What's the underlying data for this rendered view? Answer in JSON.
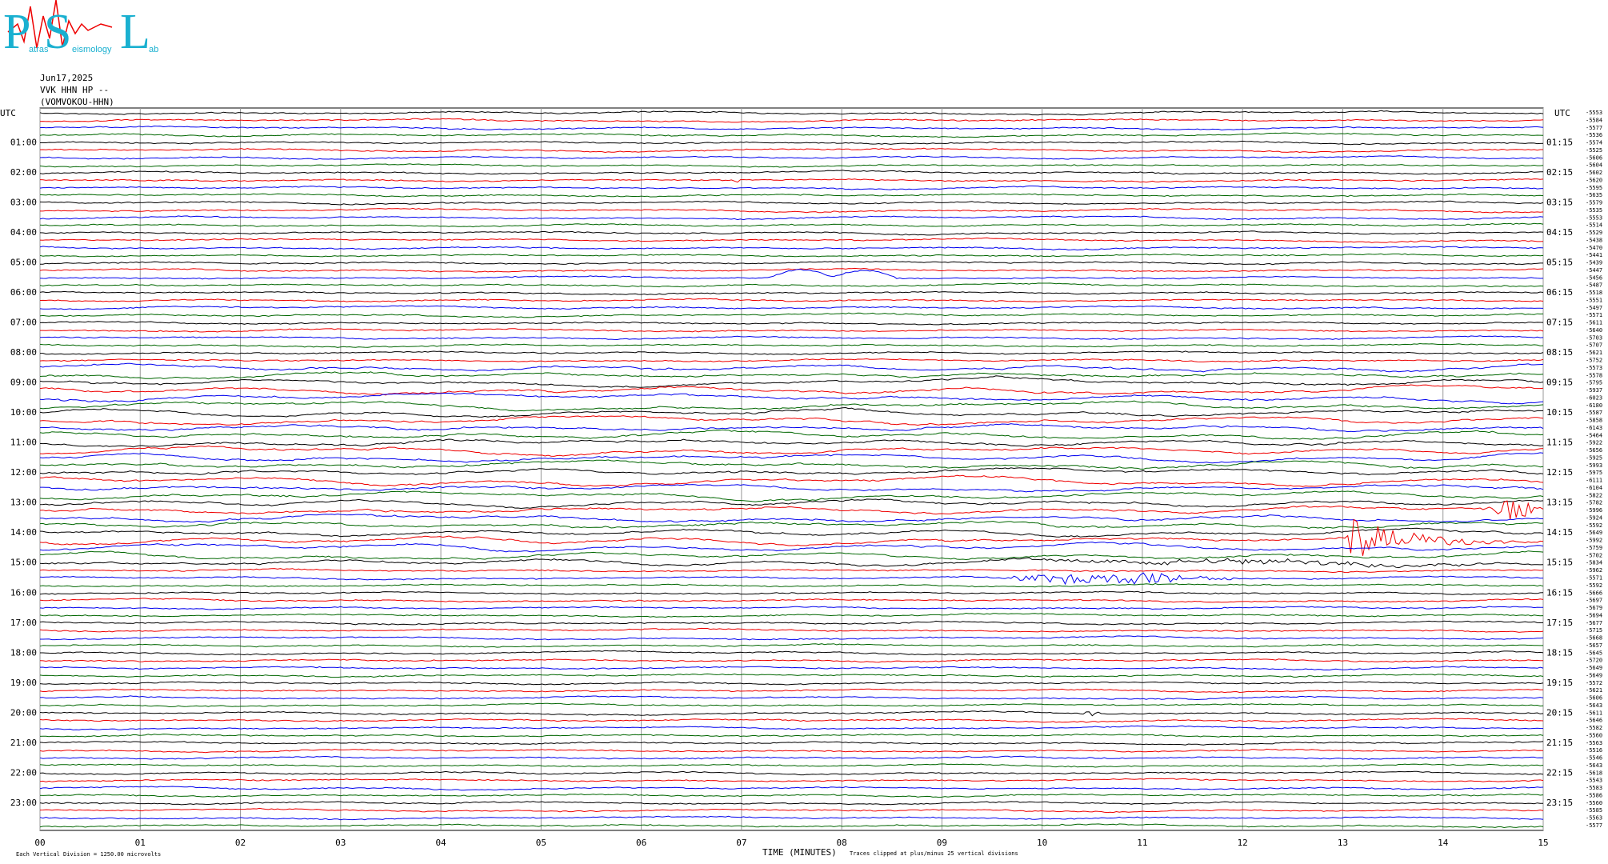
{
  "logo": {
    "letters": [
      "P",
      "S",
      "L"
    ],
    "words": [
      "atras",
      "eismology",
      "ab"
    ]
  },
  "header": {
    "date": "Jun17,2025",
    "station": "VVK HHN HP --",
    "site": "(VOMVOKOU-HHN)"
  },
  "left_top": "UTC",
  "right_top": "UTC",
  "left_labels": [
    "01:00",
    "02:00",
    "03:00",
    "04:00",
    "05:00",
    "06:00",
    "07:00",
    "08:00",
    "09:00",
    "10:00",
    "11:00",
    "12:00",
    "13:00",
    "14:00",
    "15:00",
    "16:00",
    "17:00",
    "18:00",
    "19:00",
    "20:00",
    "21:00",
    "22:00",
    "23:00"
  ],
  "right_labels": [
    "01:15",
    "02:15",
    "03:15",
    "04:15",
    "05:15",
    "06:15",
    "07:15",
    "08:15",
    "09:15",
    "10:15",
    "11:15",
    "12:15",
    "13:15",
    "14:15",
    "15:15",
    "16:15",
    "17:15",
    "18:15",
    "19:15",
    "20:15",
    "21:15",
    "22:15",
    "23:15"
  ],
  "offsets": [
    "-5553",
    "-5584",
    "-5577",
    "-5536",
    "-5574",
    "-5525",
    "-5606",
    "-5604",
    "-5602",
    "-5620",
    "-5595",
    "-5635",
    "-5579",
    "-5535",
    "-5553",
    "-5514",
    "-5529",
    "-5438",
    "-5470",
    "-5441",
    "-5439",
    "-5447",
    "-5456",
    "-5487",
    "-5518",
    "-5551",
    "-5497",
    "-5571",
    "-5611",
    "-5640",
    "-5703",
    "-5707",
    "-5621",
    "-5752",
    "-5573",
    "-5578",
    "-5795",
    "-5937",
    "-6023",
    "-6180",
    "-5587",
    "-5858",
    "-6143",
    "-5464",
    "-5922",
    "-5656",
    "-5925",
    "-5993",
    "-5975",
    "-6111",
    "-6104",
    "-5822",
    "-5782",
    "-5996",
    "-5924",
    "-5592",
    "-5649",
    "-5992",
    "-5759",
    "-5702",
    "-5834",
    "-5962",
    "-5571",
    "-5592",
    "-5666",
    "-5697",
    "-5679",
    "-5694",
    "-5677",
    "-5715",
    "-5668",
    "-5657",
    "-5645",
    "-5720",
    "-5649",
    "-5649",
    "-5572",
    "-5621",
    "-5606",
    "-5643",
    "-5611",
    "-5646",
    "-5582",
    "-5560",
    "-5563",
    "-5516",
    "-5546",
    "-5643",
    "-5618",
    "-5543",
    "-5583",
    "-5586",
    "-5560",
    "-5585",
    "-5563",
    "-5577"
  ],
  "x_ticks": [
    "00",
    "01",
    "02",
    "03",
    "04",
    "05",
    "06",
    "07",
    "08",
    "09",
    "10",
    "11",
    "12",
    "13",
    "14",
    "15"
  ],
  "footer": {
    "scale": "Each Vertical Division = 1250.00 microvolts",
    "x_label": "TIME (MINUTES)",
    "clip": "Traces clipped at plus/minus 25 vertical divisions"
  }
}
